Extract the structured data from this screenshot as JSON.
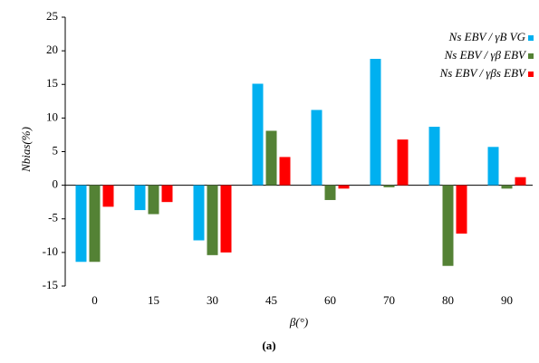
{
  "chart_data": {
    "type": "bar",
    "caption": "(a)",
    "xlabel": "β(°)",
    "ylabel": "Nbias(%)",
    "categories": [
      "0",
      "15",
      "30",
      "45",
      "60",
      "70",
      "80",
      "90"
    ],
    "series": [
      {
        "name": "Ns EBV / γB VG",
        "color": "#00b0f0",
        "values": [
          -11.4,
          -3.7,
          -8.2,
          15.1,
          11.2,
          18.8,
          8.7,
          5.7
        ]
      },
      {
        "name": "Ns EBV / γβ EBV",
        "color": "#548235",
        "values": [
          -11.4,
          -4.3,
          -10.4,
          8.1,
          -2.2,
          -0.3,
          -12,
          -0.5
        ]
      },
      {
        "name": "Ns EBV / γβs EBV",
        "color": "#ff0000",
        "values": [
          -3.2,
          -2.5,
          -10,
          4.2,
          -0.5,
          6.8,
          -7.2,
          1.2
        ]
      }
    ],
    "ylim": [
      -15,
      25
    ],
    "yticks": [
      -15,
      -10,
      -5,
      0,
      5,
      10,
      15,
      20,
      25
    ],
    "grid": false,
    "legend": "top-right"
  }
}
